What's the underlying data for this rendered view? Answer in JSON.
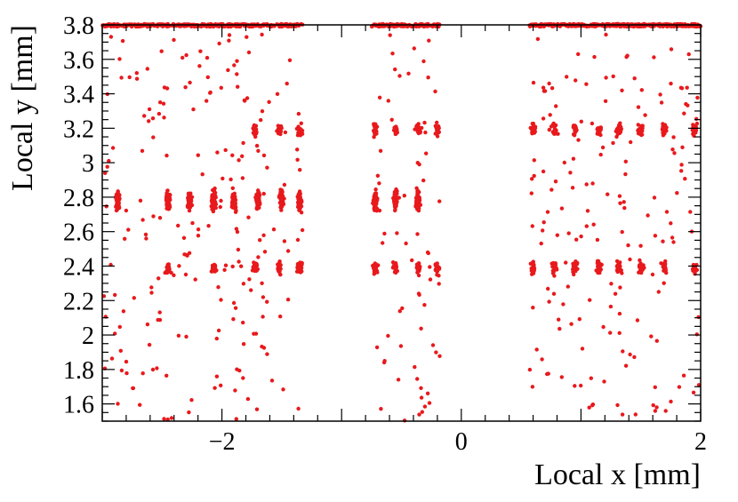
{
  "chart_data": {
    "type": "scatter",
    "title": "",
    "xlabel": "Local x [mm]",
    "ylabel": "Local y [mm]",
    "xlim": [
      -3,
      2
    ],
    "ylim": [
      1.5,
      3.8
    ],
    "x_ticks": [
      -2,
      0,
      2
    ],
    "x_tick_labels": [
      "−2",
      "0",
      "2"
    ],
    "y_ticks": [
      1.6,
      1.8,
      2.0,
      2.2,
      2.4,
      2.6,
      2.8,
      3.0,
      3.2,
      3.4,
      3.6,
      3.8
    ],
    "y_tick_labels": [
      "1.6",
      "1.8",
      "2",
      "2.2",
      "2.4",
      "2.6",
      "2.8",
      "3",
      "3.2",
      "3.4",
      "3.6",
      "3.8"
    ],
    "grid": false,
    "legend": "none",
    "marker_color": "#e8191c",
    "x_regions": [
      [
        -3.0,
        -1.32
      ],
      [
        -0.75,
        -0.18
      ],
      [
        0.57,
        2.0
      ]
    ],
    "clusters": {
      "y_2.8": [
        -2.87,
        -2.45,
        -2.27,
        -2.07,
        -1.9,
        -1.7,
        -1.5,
        -1.35,
        -0.72,
        -0.55,
        -0.36
      ],
      "y_3.2": [
        -1.72,
        -1.52,
        -1.35,
        -0.72,
        -0.55,
        -0.36,
        -0.2,
        0.6,
        0.78,
        0.95,
        1.15,
        1.32,
        1.5,
        1.7,
        1.95
      ],
      "y_2.4": [
        -2.45,
        -2.07,
        -1.72,
        -1.52,
        -1.35,
        -0.72,
        -0.55,
        -0.36,
        -0.2,
        0.6,
        0.78,
        0.95,
        1.15,
        1.32,
        1.5,
        1.7,
        1.95
      ],
      "y_3.8": "dense band across all regions"
    }
  },
  "axes": {
    "xlabel": "Local x [mm]",
    "ylabel": "Local y [mm]"
  }
}
